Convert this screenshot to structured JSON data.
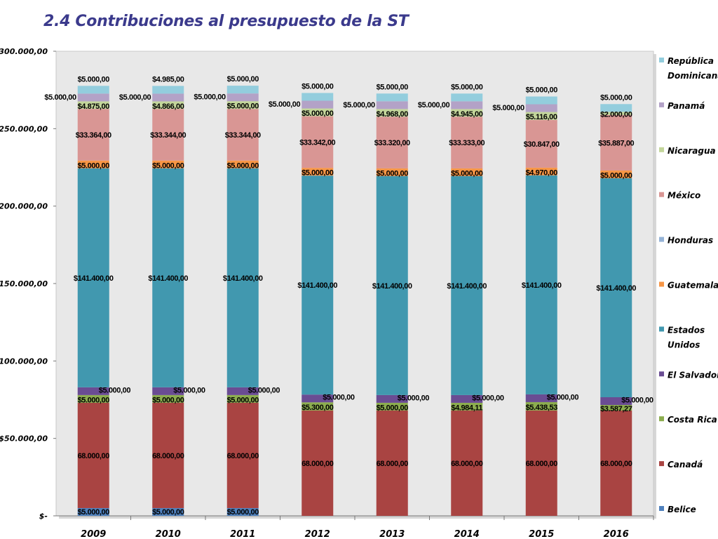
{
  "title": "2.4 Contribuciones al presupuesto de la ST",
  "chart_data": {
    "type": "bar",
    "stacked": true,
    "categories": [
      "2009",
      "2010",
      "2011",
      "2012",
      "2013",
      "2014",
      "2015",
      "2016"
    ],
    "y_tick_labels": [
      "$-",
      "$50.000,00",
      "$100.000,00",
      "$150.000,00",
      "$200.000,00",
      "$250.000,00",
      "$300.000,00"
    ],
    "ylim": [
      0,
      300000
    ],
    "grid": false,
    "legend_position": "right",
    "series": [
      {
        "name": "Belice",
        "color": "#4f81bd",
        "values": [
          5000,
          5000,
          5000,
          0,
          0,
          0,
          0,
          0
        ],
        "labels": [
          "$5.000,00",
          "$5.000,00",
          "$5.000,00",
          null,
          null,
          null,
          null,
          null
        ]
      },
      {
        "name": "Canadá",
        "color": "#a94442",
        "values": [
          68000,
          68000,
          68000,
          68000,
          68000,
          68000,
          68000,
          68000
        ],
        "labels": [
          "68.000,00",
          "68.000,00",
          "68.000,00",
          "68.000,00",
          "68.000,00",
          "68.000,00",
          "68.000,00",
          "68.000,00"
        ]
      },
      {
        "name": "Costa Rica",
        "color": "#8cad4f",
        "values": [
          5000,
          5000,
          5000,
          5300,
          5000,
          4984.11,
          5438.53,
          3587.27
        ],
        "labels": [
          "$5.000,00",
          "$5.000,00",
          "$5.000,00",
          "$5.300,00",
          "$5.000,00",
          "$4.984,11",
          "$5.438,53",
          "$3.587,27"
        ]
      },
      {
        "name": "El Salvador",
        "color": "#6a4c93",
        "values": [
          5000,
          5000,
          5000,
          5000,
          5000,
          5000,
          5000,
          5000
        ],
        "labels": [
          "$5.000,00",
          "$5.000,00",
          "$5.000,00",
          "$5.000,00",
          "$5.000,00",
          "$5.000,00",
          "$5.000,00",
          "$5.000,00"
        ]
      },
      {
        "name": "Estados Unidos",
        "color": "#4198af",
        "values": [
          141400,
          141400,
          141400,
          141400,
          141400,
          141400,
          141400,
          141400
        ],
        "labels": [
          "$141.400,00",
          "$141.400,00",
          "$141.400,00",
          "$141.400,00",
          "$141.400,00",
          "$141.400,00",
          "$141.400,00",
          "$141.400,00"
        ]
      },
      {
        "name": "Guatemala",
        "color": "#f79646",
        "values": [
          5000,
          5000,
          5000,
          5000,
          5000,
          5000,
          4970,
          5000
        ],
        "labels": [
          "$5.000,00",
          "$5.000,00",
          "$5.000,00",
          "$5.000,00",
          "$5.000,00",
          "$5.000,00",
          "$4.970,00",
          "$5.000,00"
        ]
      },
      {
        "name": "Honduras",
        "color": "#95b3d7",
        "values": [
          0,
          0,
          0,
          0,
          0,
          0,
          0,
          0
        ],
        "labels": [
          null,
          null,
          null,
          null,
          null,
          null,
          null,
          null
        ]
      },
      {
        "name": "México",
        "color": "#d99694",
        "values": [
          33364,
          33344,
          33344,
          33342,
          33320,
          33333,
          30847,
          35887
        ],
        "labels": [
          "$33.364,00",
          "$33.344,00",
          "$33.344,00",
          "$33.342,00",
          "$33.320,00",
          "$33.333,00",
          "$30.847,00",
          "$35.887,00"
        ]
      },
      {
        "name": "Nicaragua",
        "color": "#c3d69b",
        "values": [
          4875,
          4866,
          5000,
          5000,
          4968,
          4945,
          5116,
          2000
        ],
        "labels": [
          "$4.875,00",
          "$4.866,00",
          "$5.000,00",
          "$5.000,00",
          "$4.968,00",
          "$4.945,00",
          "$5.116,00",
          "$2.000,00"
        ]
      },
      {
        "name": "Panamá",
        "color": "#b3a2c7",
        "values": [
          5000,
          5000,
          5000,
          5000,
          5000,
          5000,
          5000,
          0
        ],
        "labels": [
          "$5.000,00",
          "$5.000,00",
          "$5.000,00",
          "$5.000,00",
          "$5.000,00",
          "$5.000,00",
          "$5.000,00",
          null
        ]
      },
      {
        "name": "República Dominicana",
        "color": "#93cddd",
        "values": [
          5000,
          4985,
          5000,
          5000,
          5000,
          5000,
          5000,
          5000
        ],
        "labels": [
          "$5.000,00",
          "$4.985,00",
          "$5.000,00",
          "$5.000,00",
          "$5.000,00",
          "$5.000,00",
          "$5.000,00",
          "$5.000,00"
        ]
      }
    ],
    "legend_order": [
      "República Dominicana",
      "Panamá",
      "Nicaragua",
      "México",
      "Honduras",
      "Guatemala",
      "Estados Unidos",
      "El Salvador",
      "Costa Rica",
      "Canadá",
      "Belice"
    ],
    "legend_lines": {
      "República Dominicana": [
        "República",
        "Dominicana"
      ],
      "Estados Unidos": [
        "Estados",
        "Unidos"
      ]
    }
  }
}
